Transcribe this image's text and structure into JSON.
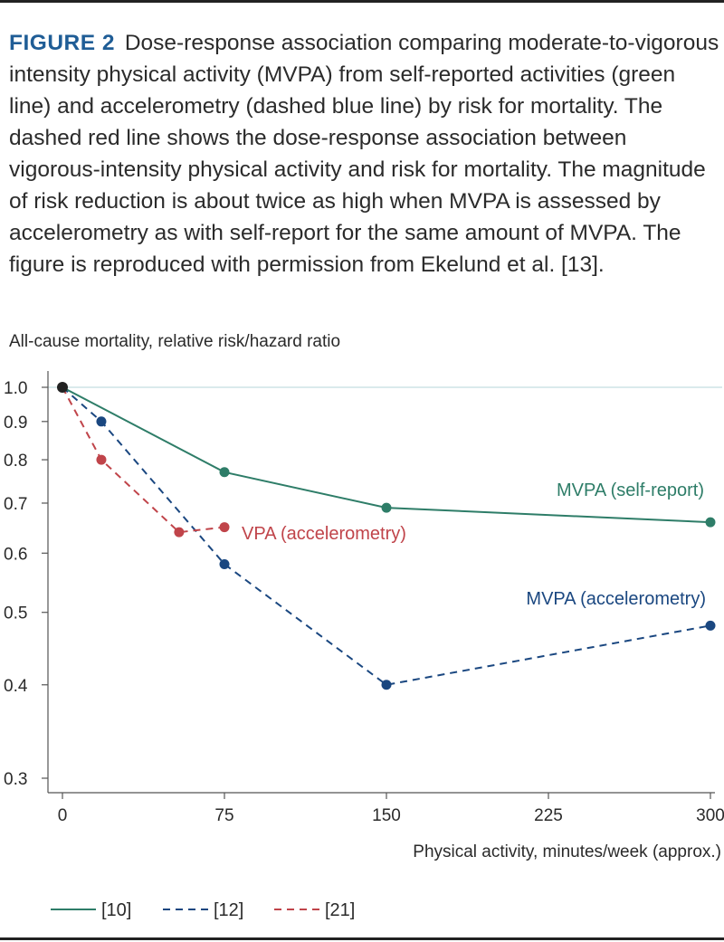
{
  "caption": {
    "label": "FIGURE 2",
    "text": "Dose-response association comparing moderate-to-vigorous intensity physical activity (MVPA) from self-reported activities (green line) and accelerometry (dashed blue line) by risk for mortality. The dashed red line shows the dose-response association between vigorous-intensity physical activity and risk for mortality. The magnitude of risk reduction is about twice as high when MVPA is assessed by accelerometry as with self-report for the same amount of MVPA. The figure is reproduced with permission from Ekelund et al. [13]."
  },
  "colors": {
    "green": "#2e7d68",
    "blue": "#1a4780",
    "red": "#c0444a",
    "axis": "#555555",
    "refline": "#cde3e6"
  },
  "chart_data": {
    "type": "line",
    "ylabel": "All-cause mortality, relative risk/hazard ratio",
    "xlabel": "Physical activity, minutes/week (approx.)",
    "y_scale": "log",
    "ylim": [
      0.3,
      1.0
    ],
    "xlim": [
      0,
      300
    ],
    "yticks": [
      1.0,
      0.9,
      0.8,
      0.7,
      0.6,
      0.5,
      0.4,
      0.3
    ],
    "ytick_labels": [
      "1.0",
      "0.9",
      "0.8",
      "0.7",
      "0.6",
      "0.5",
      "0.4",
      "0.3"
    ],
    "xticks": [
      0,
      75,
      150,
      225,
      300
    ],
    "xtick_labels": [
      "0",
      "75",
      "150",
      "225",
      "300"
    ],
    "reference_line": 1.0,
    "series": [
      {
        "name": "MVPA (self-report)",
        "legend": "[10]",
        "color": "#2e7d68",
        "dash": "solid",
        "x": [
          0,
          75,
          150,
          300
        ],
        "y": [
          1.0,
          0.77,
          0.69,
          0.66
        ]
      },
      {
        "name": "MVPA (accelerometry)",
        "legend": "[12]",
        "color": "#1a4780",
        "dash": "dashed",
        "x": [
          0,
          18,
          75,
          150,
          300
        ],
        "y": [
          1.0,
          0.9,
          0.58,
          0.4,
          0.48
        ]
      },
      {
        "name": "VPA (accelerometry)",
        "legend": "[21]",
        "color": "#c0444a",
        "dash": "dashed",
        "x": [
          0,
          18,
          54,
          75
        ],
        "y": [
          1.0,
          0.8,
          0.64,
          0.65
        ]
      }
    ],
    "origin_point": {
      "x": 0,
      "y": 1.0
    },
    "legend_placement": "bottom-left"
  }
}
